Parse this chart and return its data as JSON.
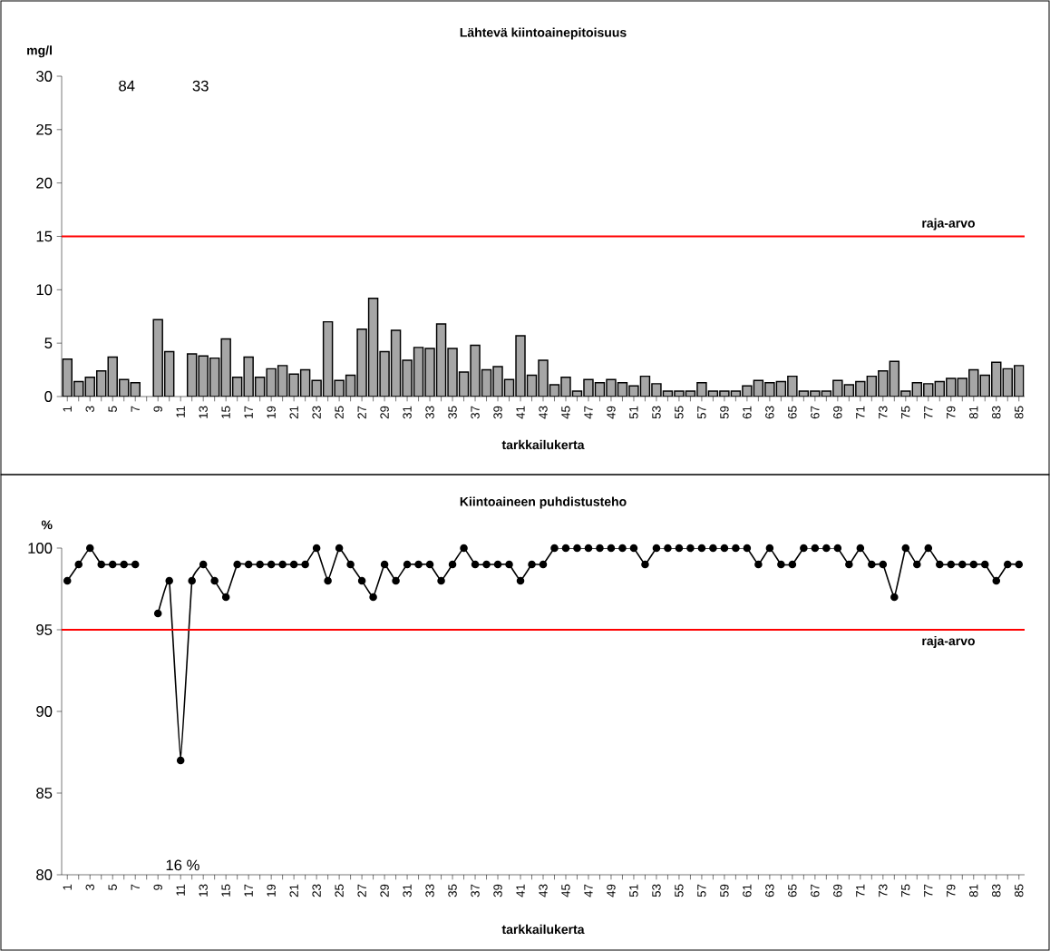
{
  "chart_data": [
    {
      "type": "bar",
      "title": "Lähtevä kiintoainepitoisuus",
      "ylabel": "mg/l",
      "xlabel": "tarkkailukerta",
      "categories": [
        "1",
        null,
        "3",
        null,
        "5",
        null,
        "7",
        null,
        "9",
        null,
        "11",
        null,
        "13",
        null,
        "15",
        null,
        "17",
        null,
        "19",
        null,
        "21",
        null,
        "23",
        null,
        "25",
        null,
        "27",
        null,
        "29",
        null,
        "31",
        null,
        "33",
        null,
        "35",
        null,
        "37",
        null,
        "39",
        null,
        "41",
        null,
        "43",
        null,
        "45",
        null,
        "47",
        null,
        "49",
        null,
        "51",
        null,
        "53",
        null,
        "55",
        null,
        "57",
        null,
        "59",
        null,
        "61",
        null,
        "63",
        null,
        "65",
        null,
        "67",
        null,
        "69",
        null,
        "71",
        null,
        "73",
        null,
        "75",
        null,
        "77",
        null,
        "79",
        null,
        "81",
        null,
        "83",
        null,
        "85"
      ],
      "values": [
        3.5,
        1.4,
        1.8,
        2.4,
        3.7,
        1.6,
        1.3,
        null,
        7.2,
        4.2,
        null,
        4.0,
        3.8,
        3.6,
        5.4,
        1.8,
        3.7,
        1.8,
        2.6,
        2.9,
        2.1,
        2.5,
        1.5,
        7.0,
        1.5,
        2.0,
        6.3,
        9.2,
        4.2,
        6.2,
        3.4,
        4.6,
        4.5,
        6.8,
        4.5,
        2.3,
        4.8,
        2.5,
        2.8,
        1.6,
        5.7,
        2.0,
        3.4,
        1.1,
        1.8,
        0.5,
        1.6,
        1.3,
        1.6,
        1.3,
        1.0,
        1.9,
        1.2,
        0.5,
        0.5,
        0.5,
        1.3,
        0.5,
        0.5,
        0.5,
        1.0,
        1.5,
        1.3,
        1.4,
        1.9,
        0.5,
        0.5,
        0.5,
        1.5,
        1.1,
        1.4,
        1.9,
        2.4,
        3.3,
        0.5,
        1.3,
        1.2,
        1.4,
        1.7,
        1.7,
        2.5,
        2.0,
        3.2,
        2.6,
        2.9
      ],
      "annotations": [
        "84",
        "33"
      ],
      "color": "#a6a6a6",
      "ylim": [
        0,
        30
      ],
      "yticks": [
        0,
        5,
        10,
        15,
        20,
        25,
        30
      ],
      "ref_lines": [
        {
          "axis": "y",
          "value": 15,
          "label": "raja-arvo",
          "color": "#ff0000"
        }
      ]
    },
    {
      "type": "line",
      "title": "Kiintoaineen puhdistusteho",
      "ylabel": "%",
      "xlabel": "tarkkailukerta",
      "categories": [
        "1",
        null,
        "3",
        null,
        "5",
        null,
        "7",
        null,
        "9",
        null,
        "11",
        null,
        "13",
        null,
        "15",
        null,
        "17",
        null,
        "19",
        null,
        "21",
        null,
        "23",
        null,
        "25",
        null,
        "27",
        null,
        "29",
        null,
        "31",
        null,
        "33",
        null,
        "35",
        null,
        "37",
        null,
        "39",
        null,
        "41",
        null,
        "43",
        null,
        "45",
        null,
        "47",
        null,
        "49",
        null,
        "51",
        null,
        "53",
        null,
        "55",
        null,
        "57",
        null,
        "59",
        null,
        "61",
        null,
        "63",
        null,
        "65",
        null,
        "67",
        null,
        "69",
        null,
        "71",
        null,
        "73",
        null,
        "75",
        null,
        "77",
        null,
        "79",
        null,
        "81",
        null,
        "83",
        null,
        "85"
      ],
      "values": [
        98,
        99,
        100,
        99,
        99,
        99,
        99,
        null,
        96,
        98,
        87,
        98,
        99,
        98,
        97,
        99,
        99,
        99,
        99,
        99,
        99,
        99,
        100,
        98,
        100,
        99,
        98,
        97,
        99,
        98,
        99,
        99,
        99,
        98,
        99,
        100,
        99,
        99,
        99,
        99,
        98,
        99,
        99,
        100,
        100,
        100,
        100,
        100,
        100,
        100,
        100,
        99,
        100,
        100,
        100,
        100,
        100,
        100,
        100,
        100,
        100,
        99,
        100,
        99,
        99,
        100,
        100,
        100,
        100,
        99,
        100,
        99,
        99,
        97,
        100,
        99,
        100,
        99,
        99,
        99,
        99,
        99,
        98,
        99,
        99
      ],
      "annotations": [
        "16 %"
      ],
      "color": "#000000",
      "marker": "circle",
      "line_style": "solid",
      "ylim": [
        80,
        100
      ],
      "yticks": [
        80,
        85,
        90,
        95,
        100
      ],
      "ref_lines": [
        {
          "axis": "y",
          "value": 95,
          "label": "raja-arvo",
          "color": "#ff0000"
        }
      ]
    }
  ]
}
